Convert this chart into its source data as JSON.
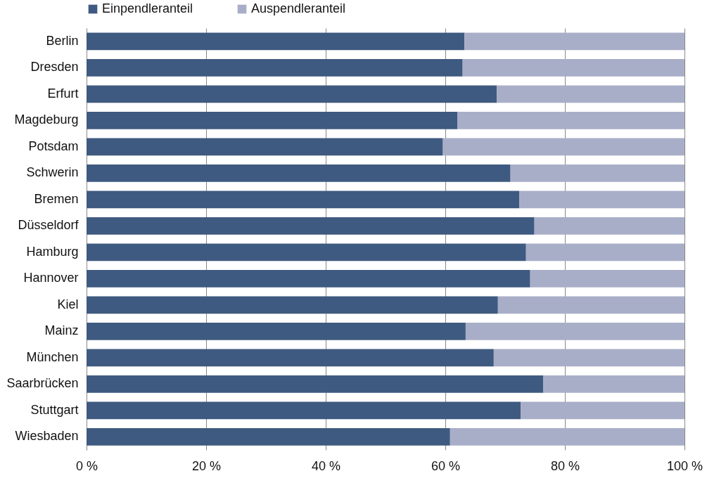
{
  "chart_data": {
    "type": "bar",
    "orientation": "horizontal",
    "stacked": true,
    "categories": [
      "Berlin",
      "Dresden",
      "Erfurt",
      "Magdeburg",
      "Potsdam",
      "Schwerin",
      "Bremen",
      "Düsseldorf",
      "Hamburg",
      "Hannover",
      "Kiel",
      "Mainz",
      "München",
      "Saarbrücken",
      "Stuttgart",
      "Wiesbaden"
    ],
    "series": [
      {
        "name": "Einpendleranteil",
        "color": "#3f5a80",
        "values": [
          63.2,
          62.9,
          68.6,
          62.0,
          59.6,
          70.9,
          72.4,
          74.9,
          73.5,
          74.2,
          68.8,
          63.4,
          68.1,
          76.4,
          72.6,
          60.8
        ]
      },
      {
        "name": "Auspendleranteil",
        "color": "#a9aec8",
        "values": [
          36.8,
          37.1,
          31.4,
          38.0,
          40.4,
          29.1,
          27.6,
          25.1,
          26.5,
          25.8,
          31.2,
          36.6,
          31.9,
          23.6,
          27.4,
          39.2
        ]
      }
    ],
    "xlim": [
      0,
      100
    ],
    "xticks": [
      {
        "value": 0,
        "label": "0 %"
      },
      {
        "value": 20,
        "label": "20 %"
      },
      {
        "value": 40,
        "label": "40 %"
      },
      {
        "value": 60,
        "label": "60 %"
      },
      {
        "value": 80,
        "label": "80 %"
      },
      {
        "value": 100,
        "label": "100 %"
      }
    ],
    "grid": "x",
    "legend": "top"
  }
}
